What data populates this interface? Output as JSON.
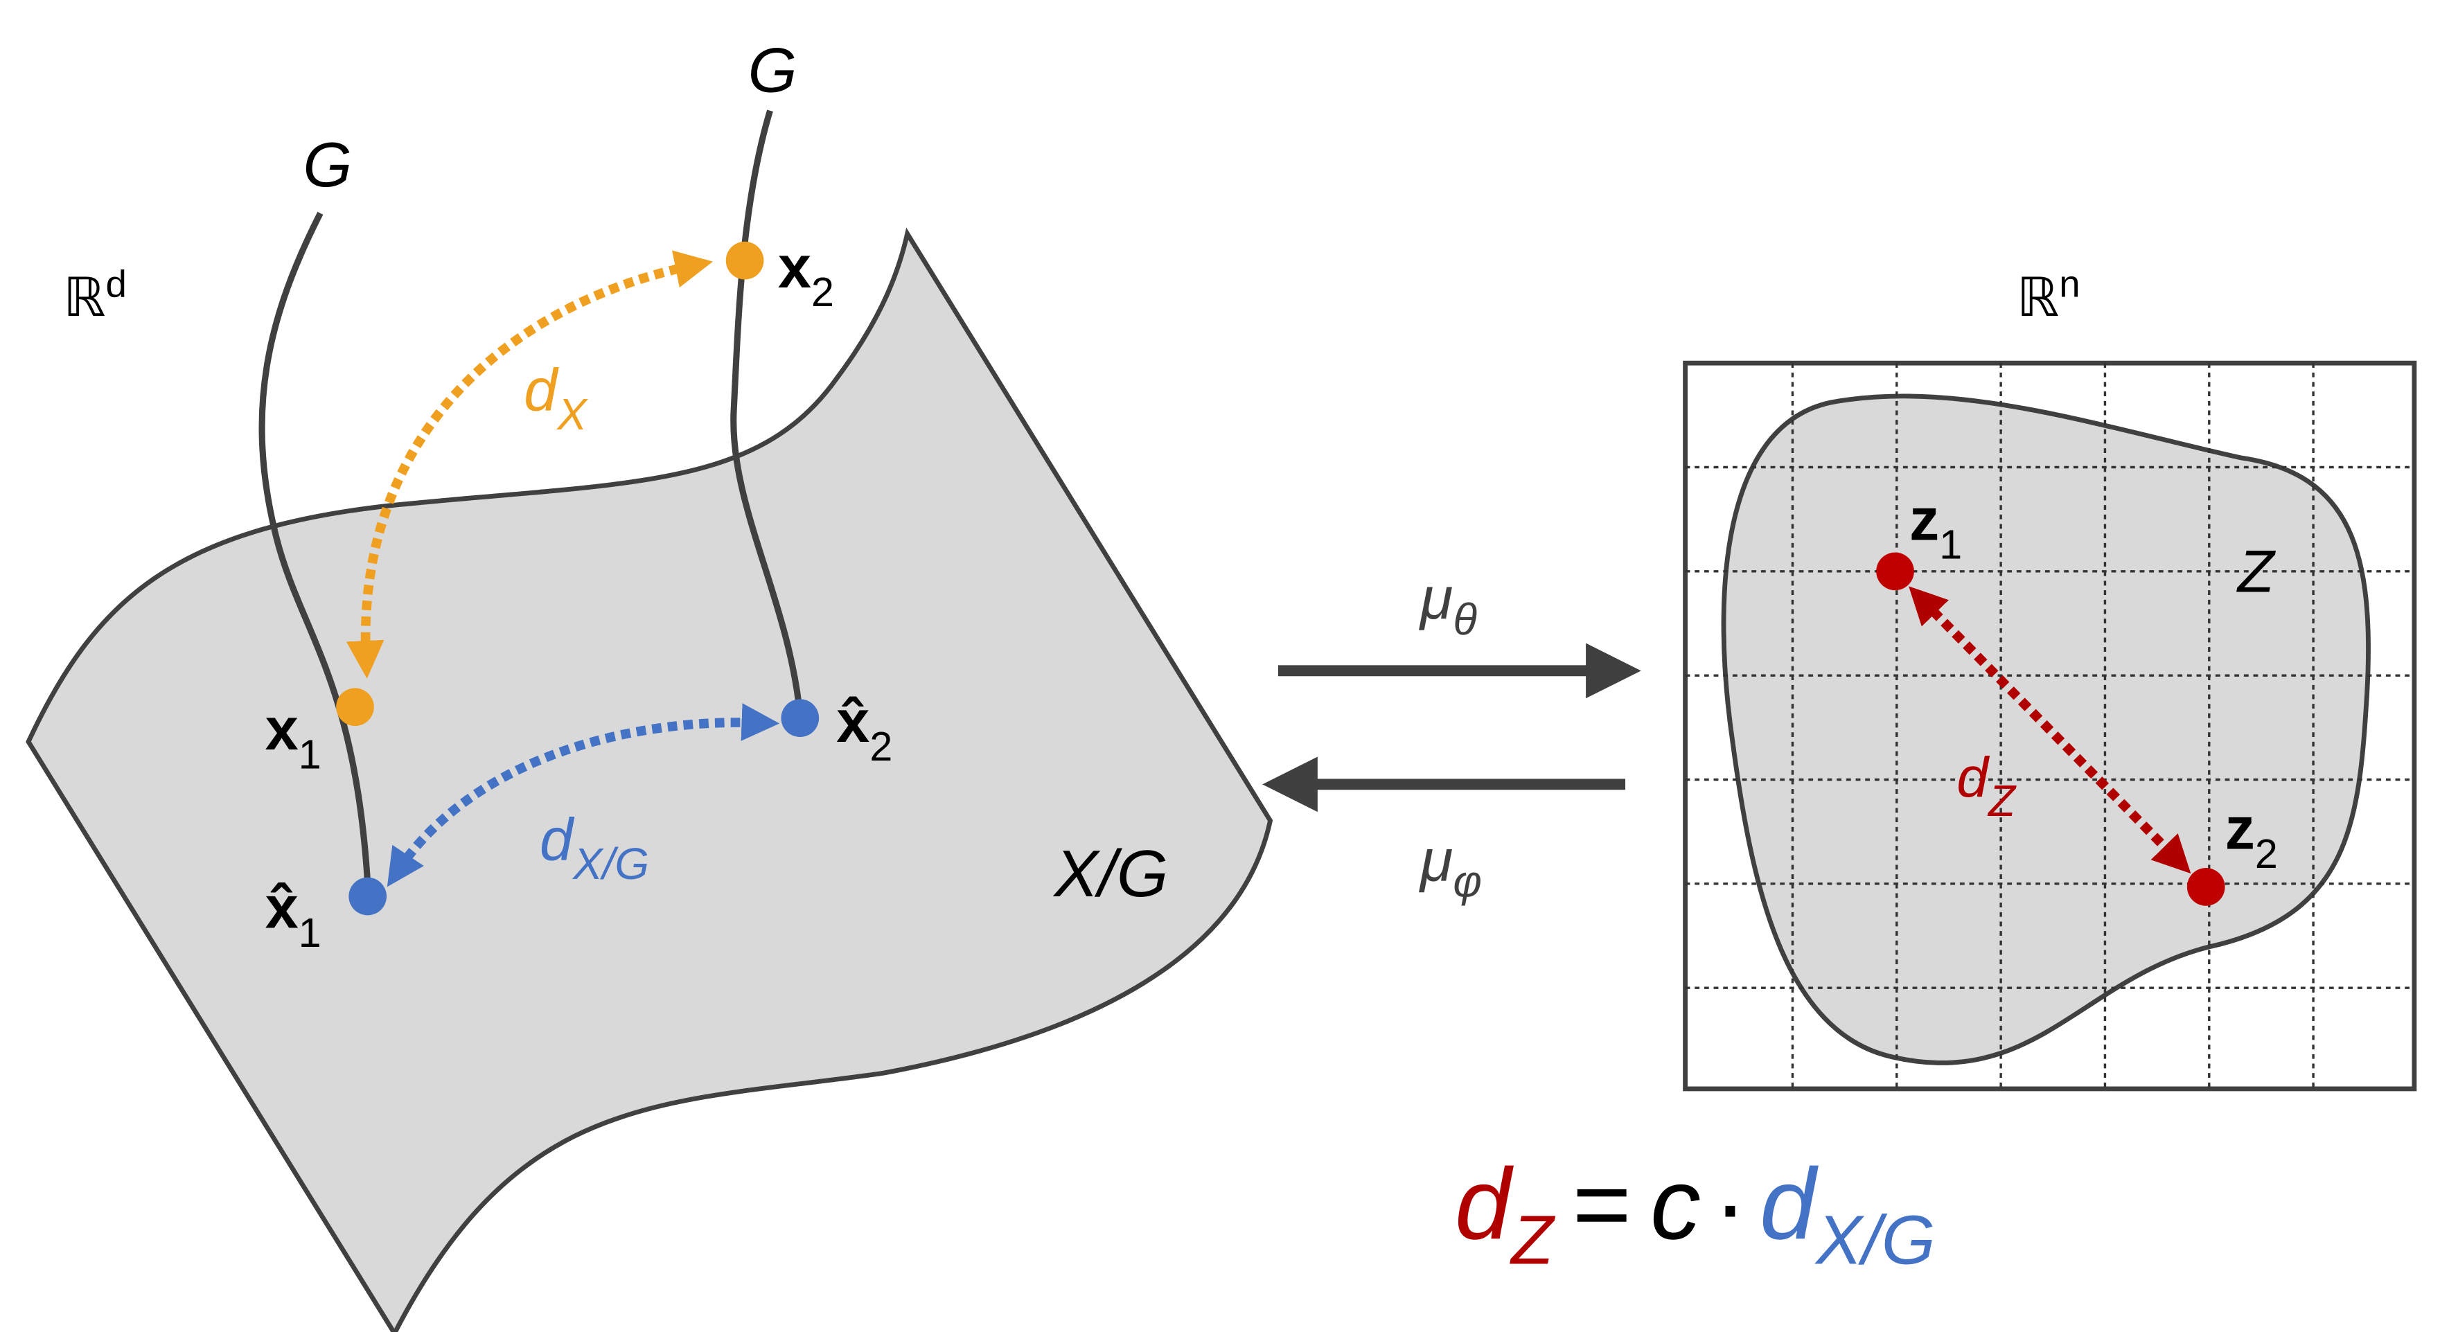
{
  "space_labels": {
    "input": {
      "base": "ℝ",
      "sup": "d"
    },
    "latent": {
      "base": "ℝ",
      "sup": "n"
    }
  },
  "orbits": [
    {
      "label": "G"
    },
    {
      "label": "G"
    }
  ],
  "points": [
    {
      "base": "x",
      "sub": "1"
    },
    {
      "base": "x",
      "sub": "2"
    },
    {
      "base": "x̂",
      "sub": "1"
    },
    {
      "base": "x̂",
      "sub": "2"
    },
    {
      "base": "z",
      "sub": "1"
    },
    {
      "base": "z",
      "sub": "2"
    }
  ],
  "distances": [
    {
      "base": "d",
      "sub": "X"
    },
    {
      "base": "d",
      "sub": "X/G"
    },
    {
      "base": "d",
      "sub": "Z"
    }
  ],
  "sets": {
    "quotient": "X/G",
    "latent": "Z"
  },
  "maps": [
    {
      "base": "μ",
      "sub": "θ"
    },
    {
      "base": "μ",
      "sub": "φ"
    }
  ],
  "equation": {
    "lhs": {
      "base": "d",
      "sub": "Z"
    },
    "eq": "=",
    "c": "c",
    "dot": "·",
    "rhs": {
      "base": "d",
      "sub": "X/G"
    }
  }
}
